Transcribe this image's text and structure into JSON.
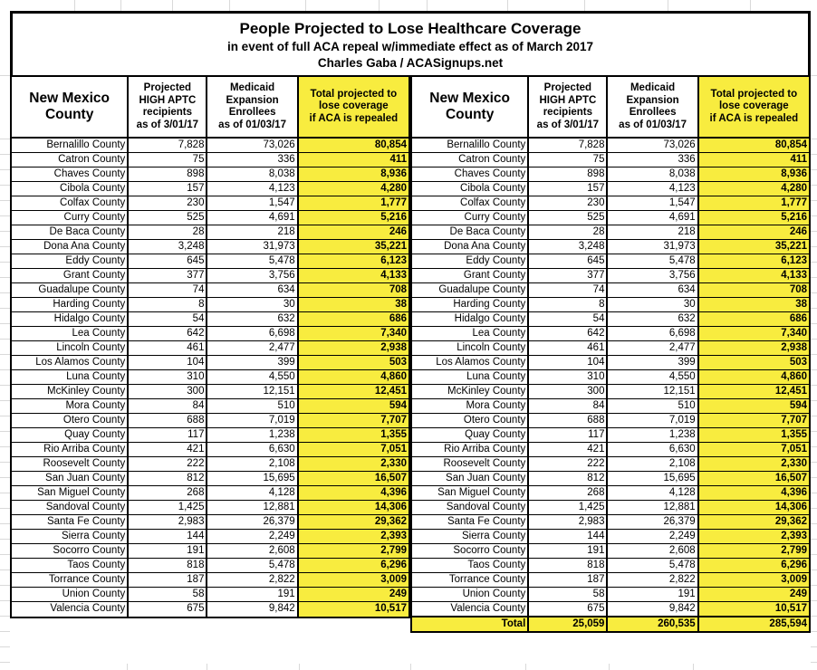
{
  "title": {
    "line1": "People Projected to Lose Healthcare Coverage",
    "line2": "in event of full ACA repeal w/immediate effect as of March 2017",
    "line3": "Charles Gaba / ACASignups.net"
  },
  "columns": {
    "county": "New Mexico County",
    "aptc": "Projected HIGH APTC recipients as of 3/01/17",
    "aptc_lines": [
      "Projected",
      "HIGH APTC",
      "recipients",
      "as of 3/01/17"
    ],
    "medicaid": "Medicaid Expansion Enrollees as of 01/03/17",
    "medicaid_lines": [
      "Medicaid",
      "Expansion",
      "Enrollees",
      "as of 01/03/17"
    ],
    "total": "Total projected to lose coverage if ACA is repealed",
    "total_lines": [
      "Total projected to",
      "lose coverage",
      "if ACA is repealed"
    ]
  },
  "rows": [
    {
      "name": "Bernalillo County",
      "aptc": "7,828",
      "medicaid": "73,026",
      "total": "80,854"
    },
    {
      "name": "Catron County",
      "aptc": "75",
      "medicaid": "336",
      "total": "411"
    },
    {
      "name": "Chaves County",
      "aptc": "898",
      "medicaid": "8,038",
      "total": "8,936"
    },
    {
      "name": "Cibola County",
      "aptc": "157",
      "medicaid": "4,123",
      "total": "4,280"
    },
    {
      "name": "Colfax County",
      "aptc": "230",
      "medicaid": "1,547",
      "total": "1,777"
    },
    {
      "name": "Curry County",
      "aptc": "525",
      "medicaid": "4,691",
      "total": "5,216"
    },
    {
      "name": "De Baca County",
      "aptc": "28",
      "medicaid": "218",
      "total": "246"
    },
    {
      "name": "Dona Ana County",
      "aptc": "3,248",
      "medicaid": "31,973",
      "total": "35,221"
    },
    {
      "name": "Eddy County",
      "aptc": "645",
      "medicaid": "5,478",
      "total": "6,123"
    },
    {
      "name": "Grant County",
      "aptc": "377",
      "medicaid": "3,756",
      "total": "4,133"
    },
    {
      "name": "Guadalupe County",
      "aptc": "74",
      "medicaid": "634",
      "total": "708"
    },
    {
      "name": "Harding County",
      "aptc": "8",
      "medicaid": "30",
      "total": "38"
    },
    {
      "name": "Hidalgo County",
      "aptc": "54",
      "medicaid": "632",
      "total": "686"
    },
    {
      "name": "Lea County",
      "aptc": "642",
      "medicaid": "6,698",
      "total": "7,340"
    },
    {
      "name": "Lincoln County",
      "aptc": "461",
      "medicaid": "2,477",
      "total": "2,938"
    },
    {
      "name": "Los Alamos County",
      "aptc": "104",
      "medicaid": "399",
      "total": "503"
    },
    {
      "name": "Luna County",
      "aptc": "310",
      "medicaid": "4,550",
      "total": "4,860"
    },
    {
      "name": "McKinley County",
      "aptc": "300",
      "medicaid": "12,151",
      "total": "12,451"
    },
    {
      "name": "Mora County",
      "aptc": "84",
      "medicaid": "510",
      "total": "594"
    },
    {
      "name": "Otero County",
      "aptc": "688",
      "medicaid": "7,019",
      "total": "7,707"
    },
    {
      "name": "Quay County",
      "aptc": "117",
      "medicaid": "1,238",
      "total": "1,355"
    },
    {
      "name": "Rio Arriba County",
      "aptc": "421",
      "medicaid": "6,630",
      "total": "7,051"
    },
    {
      "name": "Roosevelt County",
      "aptc": "222",
      "medicaid": "2,108",
      "total": "2,330"
    },
    {
      "name": "San Juan County",
      "aptc": "812",
      "medicaid": "15,695",
      "total": "16,507"
    },
    {
      "name": "San Miguel County",
      "aptc": "268",
      "medicaid": "4,128",
      "total": "4,396"
    },
    {
      "name": "Sandoval County",
      "aptc": "1,425",
      "medicaid": "12,881",
      "total": "14,306"
    },
    {
      "name": "Santa Fe County",
      "aptc": "2,983",
      "medicaid": "26,379",
      "total": "29,362"
    },
    {
      "name": "Sierra County",
      "aptc": "144",
      "medicaid": "2,249",
      "total": "2,393"
    },
    {
      "name": "Socorro County",
      "aptc": "191",
      "medicaid": "2,608",
      "total": "2,799"
    },
    {
      "name": "Taos County",
      "aptc": "818",
      "medicaid": "5,478",
      "total": "6,296"
    },
    {
      "name": "Torrance County",
      "aptc": "187",
      "medicaid": "2,822",
      "total": "3,009"
    },
    {
      "name": "Union County",
      "aptc": "58",
      "medicaid": "191",
      "total": "249"
    },
    {
      "name": "Valencia County",
      "aptc": "675",
      "medicaid": "9,842",
      "total": "10,517"
    }
  ],
  "totals": {
    "label": "Total",
    "aptc": "25,059",
    "medicaid": "260,535",
    "total": "285,594"
  },
  "colors": {
    "highlight_yellow": "#f8ec3f",
    "border_black": "#000000",
    "sheet_gridline": "#d9d9d9"
  }
}
